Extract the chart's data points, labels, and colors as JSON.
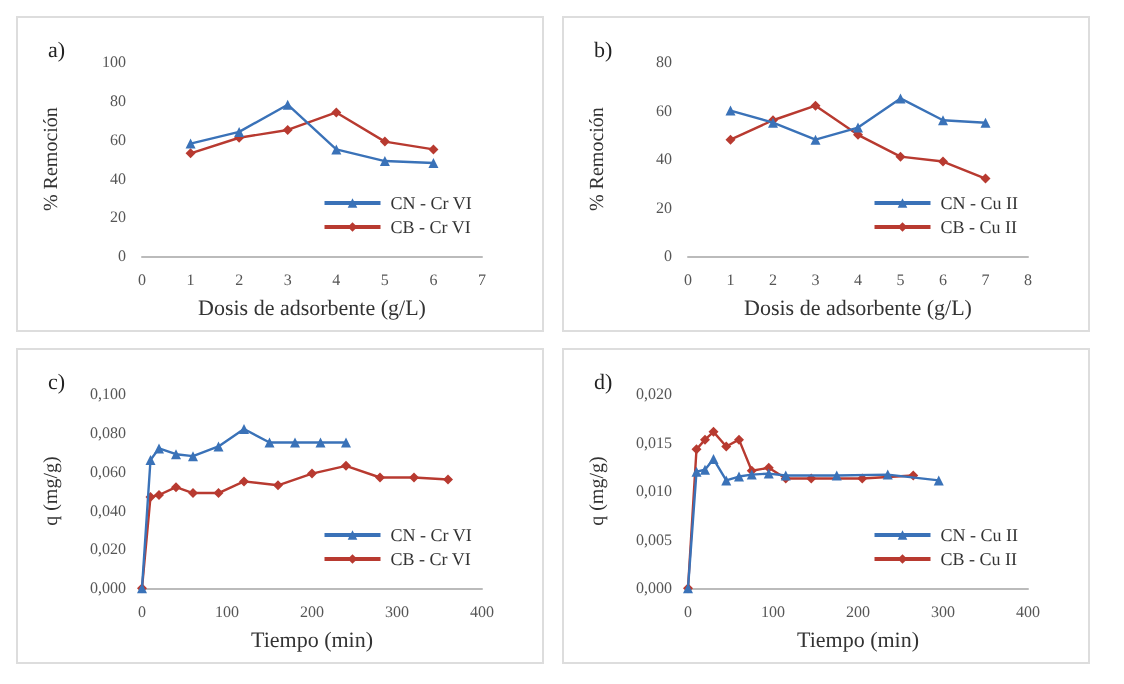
{
  "chart_data": [
    {
      "type": "line",
      "title": "a)",
      "xlabel": "Dosis de adsorbente (g/L)",
      "ylabel": "% Remoción",
      "xlim": [
        0,
        7
      ],
      "xticks": [
        0,
        1,
        2,
        3,
        4,
        5,
        6,
        7
      ],
      "ylim": [
        0,
        100
      ],
      "yticks": [
        0,
        20,
        40,
        60,
        80,
        100
      ],
      "legend": "bottom right",
      "grid": false,
      "series": [
        {
          "name": "CN - Cr VI",
          "color": "#3a72b8",
          "marker": "triangle",
          "x": [
            1,
            2,
            3,
            4,
            5,
            6
          ],
          "values": [
            58,
            64,
            78,
            55,
            49,
            48
          ]
        },
        {
          "name": "CB - Cr VI",
          "color": "#b83a30",
          "marker": "diamond",
          "x": [
            1,
            2,
            3,
            4,
            5,
            6
          ],
          "values": [
            53,
            61,
            65,
            74,
            59,
            55
          ]
        }
      ]
    },
    {
      "type": "line",
      "title": "b)",
      "xlabel": "Dosis de adsorbente (g/L)",
      "ylabel": "% Remoción",
      "xlim": [
        0,
        8
      ],
      "xticks": [
        0,
        1,
        2,
        3,
        4,
        5,
        6,
        7,
        8
      ],
      "ylim": [
        0,
        80
      ],
      "yticks": [
        0,
        20,
        40,
        60,
        80
      ],
      "legend": "bottom right",
      "grid": false,
      "series": [
        {
          "name": "CN - Cu II",
          "color": "#3a72b8",
          "marker": "triangle",
          "x": [
            1,
            2,
            3,
            4,
            5,
            6,
            7
          ],
          "values": [
            60,
            55,
            48,
            53,
            65,
            56,
            55
          ]
        },
        {
          "name": "CB - Cu II",
          "color": "#b83a30",
          "marker": "diamond",
          "x": [
            1,
            2,
            3,
            4,
            5,
            6,
            7
          ],
          "values": [
            48,
            56,
            62,
            50,
            41,
            39,
            32
          ]
        }
      ]
    },
    {
      "type": "line",
      "title": "c)",
      "xlabel": "Tiempo (min)",
      "ylabel": "q (mg/g)",
      "xlim": [
        0,
        400
      ],
      "xticks": [
        0,
        100,
        200,
        300,
        400
      ],
      "ylim": [
        0,
        0.1
      ],
      "yticks": [
        {
          "value": 0,
          "label": "0,000"
        },
        {
          "value": 0.02,
          "label": "0,020"
        },
        {
          "value": 0.04,
          "label": "0,040"
        },
        {
          "value": 0.06,
          "label": "0,060"
        },
        {
          "value": 0.08,
          "label": "0,080"
        },
        {
          "value": 0.1,
          "label": "0,100"
        }
      ],
      "legend": "bottom right",
      "grid": false,
      "series": [
        {
          "name": "CN - Cr VI",
          "color": "#3a72b8",
          "marker": "triangle",
          "x": [
            0,
            10,
            20,
            40,
            60,
            90,
            120,
            150,
            180,
            210,
            240
          ],
          "values": [
            0,
            0.066,
            0.072,
            0.069,
            0.068,
            0.073,
            0.082,
            0.075,
            0.075,
            0.075,
            0.075
          ]
        },
        {
          "name": "CB - Cr VI",
          "color": "#b83a30",
          "marker": "diamond",
          "x": [
            0,
            10,
            20,
            40,
            60,
            90,
            120,
            160,
            200,
            240,
            280,
            320,
            360
          ],
          "values": [
            0,
            0.047,
            0.048,
            0.052,
            0.049,
            0.049,
            0.055,
            0.053,
            0.059,
            0.063,
            0.057,
            0.057,
            0.056
          ]
        }
      ]
    },
    {
      "type": "line",
      "title": "d)",
      "xlabel": "Tiempo (min)",
      "ylabel": "q (mg/g)",
      "xlim": [
        0,
        400
      ],
      "xticks": [
        0,
        100,
        200,
        300,
        400
      ],
      "ylim": [
        0,
        0.02
      ],
      "yticks": [
        {
          "value": 0,
          "label": "0,000"
        },
        {
          "value": 0.005,
          "label": "0,005"
        },
        {
          "value": 0.01,
          "label": "0,010"
        },
        {
          "value": 0.015,
          "label": "0,015"
        },
        {
          "value": 0.02,
          "label": "0,020"
        }
      ],
      "legend": "bottom right",
      "grid": false,
      "series": [
        {
          "name": "CN - Cu II",
          "color": "#3a72b8",
          "marker": "triangle",
          "x": [
            0,
            10,
            20,
            30,
            45,
            60,
            75,
            95,
            115,
            175,
            235,
            295
          ],
          "values": [
            0,
            0.012,
            0.0122,
            0.0133,
            0.0111,
            0.0115,
            0.0117,
            0.0118,
            0.0116,
            0.0116,
            0.0117,
            0.0111
          ]
        },
        {
          "name": "CB - Cu II",
          "color": "#b83a30",
          "marker": "diamond",
          "x": [
            0,
            10,
            20,
            30,
            45,
            60,
            75,
            95,
            115,
            145,
            205,
            265
          ],
          "values": [
            0,
            0.0143,
            0.0153,
            0.0161,
            0.0146,
            0.0153,
            0.0121,
            0.0124,
            0.0113,
            0.0113,
            0.0113,
            0.0116
          ]
        }
      ]
    }
  ]
}
